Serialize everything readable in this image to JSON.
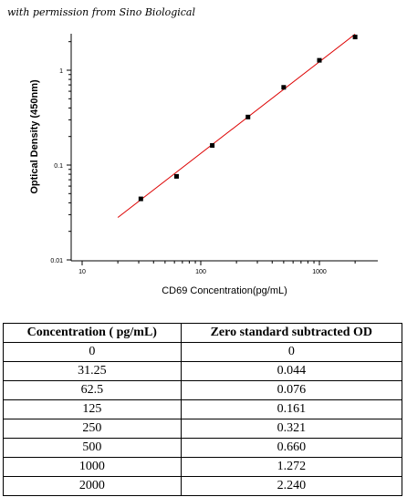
{
  "credit": "with permission from Sino Biological",
  "chart_data": {
    "type": "scatter",
    "xlabel": "CD69  Concentration(pg/mL)",
    "ylabel": "Optical Density (450nm)",
    "xscale": "log",
    "yscale": "log",
    "xlim": [
      10,
      2000
    ],
    "ylim": [
      0.01,
      2.4
    ],
    "x_ticks": [
      10,
      100,
      1000
    ],
    "x_tick_labels": [
      "10",
      "100",
      "1000"
    ],
    "y_ticks": [
      0.01,
      0.1,
      1
    ],
    "y_tick_labels": [
      "0.01",
      "0.1",
      "1"
    ],
    "grid": false,
    "series": [
      {
        "marker": "square",
        "color": "#000000",
        "x": [
          31.25,
          62.5,
          125,
          250,
          500,
          1000,
          2000
        ],
        "y": [
          0.044,
          0.076,
          0.161,
          0.321,
          0.66,
          1.272,
          2.24
        ]
      }
    ],
    "fit_line": {
      "color": "#dd0000",
      "x": [
        20,
        2000
      ],
      "y": [
        0.028,
        2.4
      ]
    }
  },
  "table": {
    "headers": [
      "Concentration ( pg/mL)",
      "Zero standard subtracted OD"
    ],
    "rows": [
      [
        "0",
        "0"
      ],
      [
        "31.25",
        "0.044"
      ],
      [
        "62.5",
        "0.076"
      ],
      [
        "125",
        "0.161"
      ],
      [
        "250",
        "0.321"
      ],
      [
        "500",
        "0.660"
      ],
      [
        "1000",
        "1.272"
      ],
      [
        "2000",
        "2.240"
      ]
    ]
  }
}
